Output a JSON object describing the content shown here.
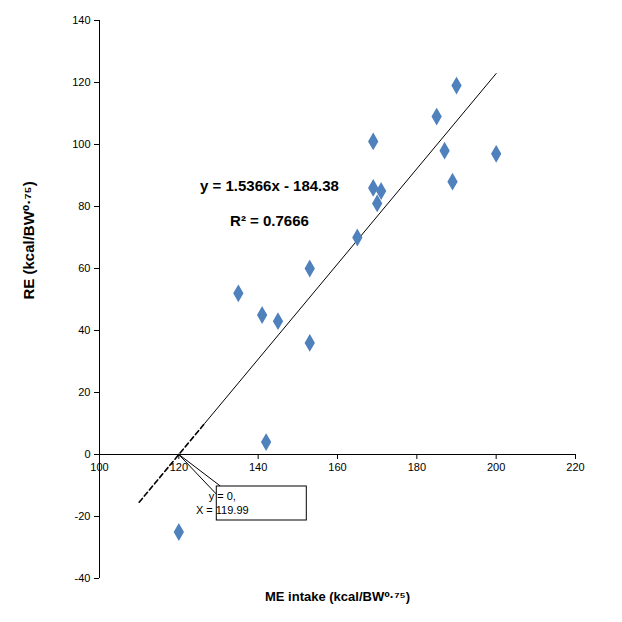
{
  "chart_data": {
    "type": "scatter",
    "x_label": "ME intake (kcal/BW⁰·⁷⁵)",
    "y_label": "RE (kcal/BW⁰·⁷⁵)",
    "x": [
      135,
      141,
      142,
      145,
      153,
      153,
      165,
      169,
      169,
      170,
      171,
      185,
      187,
      189,
      190,
      200,
      120
    ],
    "values": [
      52,
      45,
      4,
      43,
      60,
      36,
      70,
      101,
      86,
      81,
      85,
      109,
      98,
      88,
      119,
      97,
      -25
    ],
    "color": "#4f81bd",
    "marker": "diamond",
    "xlim": [
      100,
      220
    ],
    "xticks": [
      100,
      120,
      140,
      160,
      180,
      200,
      220
    ],
    "ylim": [
      -40,
      140
    ],
    "yticks": [
      -40,
      -20,
      0,
      20,
      40,
      60,
      80,
      100,
      120,
      140
    ],
    "grid": false,
    "fit_line": {
      "x": [
        126.5,
        200
      ],
      "y": [
        10,
        122.9
      ]
    },
    "extrapolation": {
      "x": [
        110,
        126.5
      ],
      "y": [
        -15.4,
        10
      ],
      "line_style": "dashed"
    },
    "annotations": [
      "y = 1.5366x - 184.38",
      "R² = 0.7666"
    ],
    "callout": {
      "x": 119.99,
      "y": 0,
      "lines": [
        "y = 0,",
        "X = 119.99"
      ]
    }
  }
}
